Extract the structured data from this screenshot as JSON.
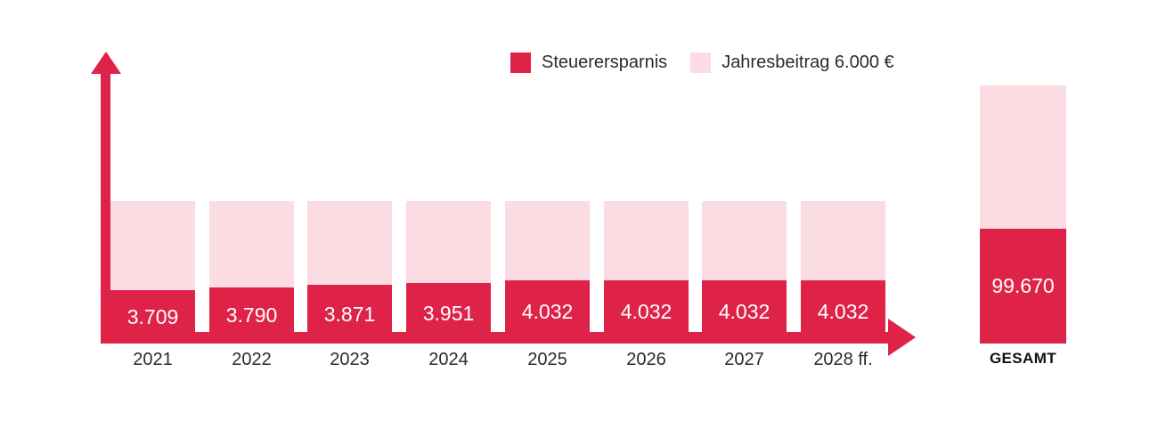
{
  "colors": {
    "primary": "#df2348",
    "light_pink": "#fadce2",
    "text_dark": "#2b2b2b",
    "value_text": "#ffffff",
    "background": "#ffffff"
  },
  "legend": {
    "items": [
      {
        "label": "Steuerersparnis",
        "color": "#df2348"
      },
      {
        "label": "Jahresbeitrag 6.000 €",
        "color": "#fadce2"
      }
    ]
  },
  "chart_data": {
    "type": "bar",
    "subtype": "stacked",
    "title": "",
    "xlabel": "",
    "ylabel": "",
    "grid": false,
    "legend_position": "top-center",
    "axes_style": "red arrow axes, no tick values",
    "categories": [
      "2021",
      "2022",
      "2023",
      "2024",
      "2025",
      "2026",
      "2027",
      "2028 ff."
    ],
    "series": [
      {
        "name": "Steuerersparnis",
        "color": "#df2348",
        "values": [
          3709,
          3790,
          3871,
          3951,
          4032,
          4032,
          4032,
          4032
        ],
        "value_labels": [
          "3.709",
          "3.790",
          "3.871",
          "3.951",
          "4.032",
          "4.032",
          "4.032",
          "4.032"
        ]
      },
      {
        "name": "Jahresbeitrag 6.000 €",
        "color": "#fadce2",
        "values": [
          6000,
          6000,
          6000,
          6000,
          6000,
          6000,
          6000,
          6000
        ]
      }
    ],
    "total_bar": {
      "category": "GESAMT",
      "value": 99670,
      "value_label": "99.670",
      "savings_color": "#df2348",
      "contribution_color": "#fadce2"
    }
  }
}
